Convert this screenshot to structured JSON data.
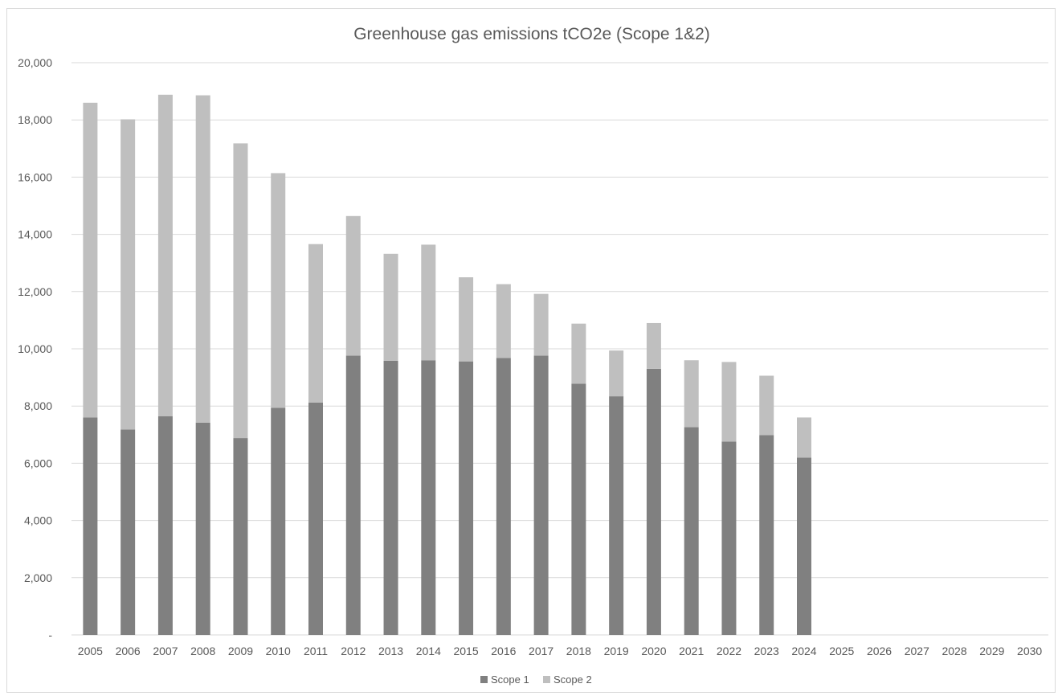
{
  "chart_data": {
    "type": "bar",
    "stacked": true,
    "title": "Greenhouse gas emissions tCO2e (Scope 1&2)",
    "xlabel": "",
    "ylabel": "",
    "ylim": [
      0,
      20000
    ],
    "yticks": [
      0,
      2000,
      4000,
      6000,
      8000,
      10000,
      12000,
      14000,
      16000,
      18000,
      20000
    ],
    "ytick_labels": [
      "-",
      "2,000",
      "4,000",
      "6,000",
      "8,000",
      "10,000",
      "12,000",
      "14,000",
      "16,000",
      "18,000",
      "20,000"
    ],
    "grid": true,
    "legend_position": "bottom",
    "categories": [
      "2005",
      "2006",
      "2007",
      "2008",
      "2009",
      "2010",
      "2011",
      "2012",
      "2013",
      "2014",
      "2015",
      "2016",
      "2017",
      "2018",
      "2019",
      "2020",
      "2021",
      "2022",
      "2023",
      "2024",
      "2025",
      "2026",
      "2027",
      "2028",
      "2029",
      "2030"
    ],
    "series": [
      {
        "name": "Scope 1",
        "color": "#808080",
        "values": [
          7600,
          7180,
          7640,
          7420,
          6880,
          7940,
          8120,
          9760,
          9580,
          9600,
          9560,
          9680,
          9760,
          8780,
          8340,
          9300,
          7260,
          6760,
          6980,
          6200,
          null,
          null,
          null,
          null,
          null,
          null
        ]
      },
      {
        "name": "Scope 2",
        "color": "#bfbfbf",
        "values": [
          11000,
          10840,
          11240,
          11440,
          10300,
          8200,
          5540,
          4880,
          3740,
          4040,
          2940,
          2580,
          2160,
          2100,
          1600,
          1600,
          2340,
          2780,
          2080,
          1400,
          null,
          null,
          null,
          null,
          null,
          null
        ]
      }
    ]
  }
}
